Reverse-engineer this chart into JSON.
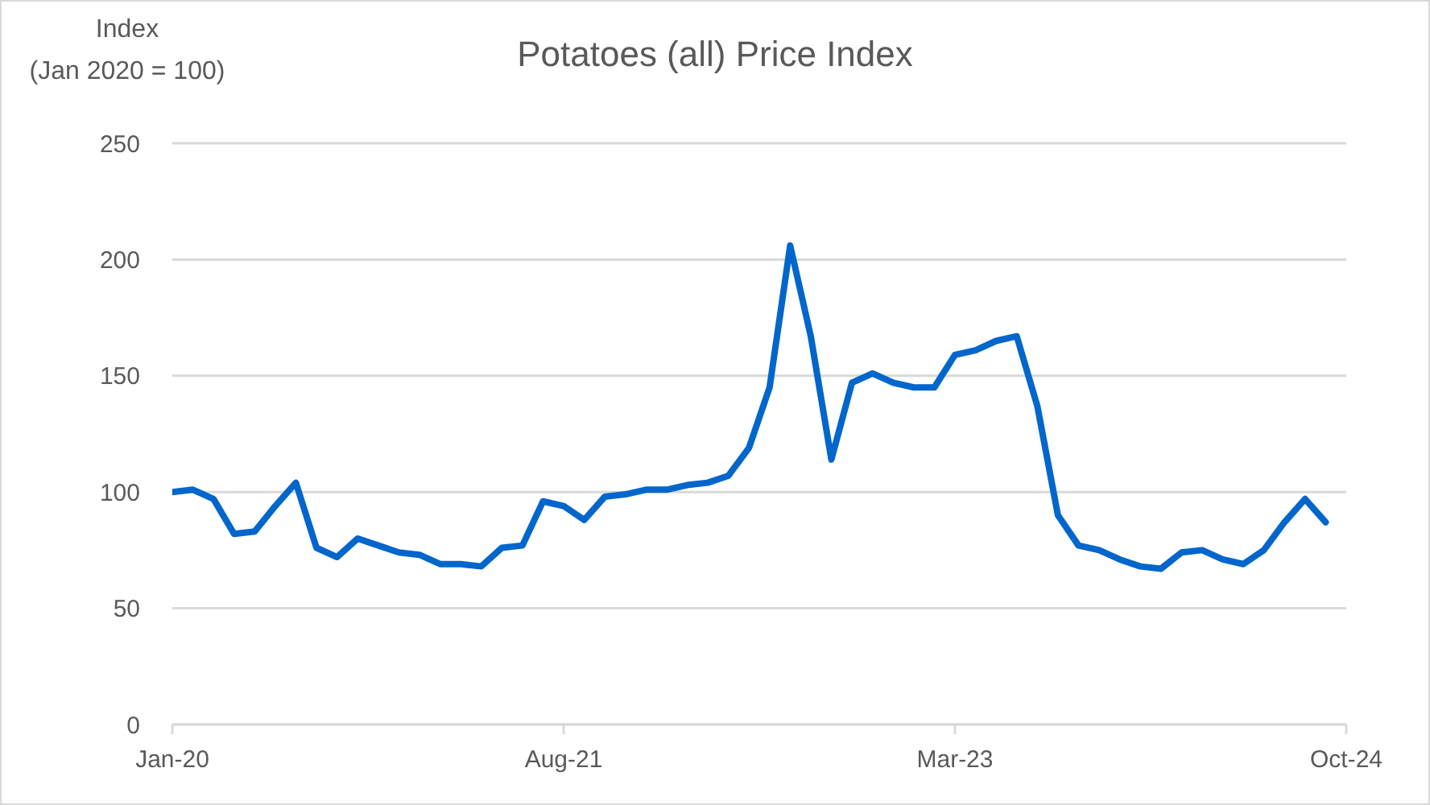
{
  "chart_data": {
    "type": "line",
    "title": "Potatoes (all) Price Index",
    "ylabel": "Index\n(Jan 2020 = 100)",
    "x": [
      "2020-01",
      "2020-02",
      "2020-03",
      "2020-04",
      "2020-05",
      "2020-06",
      "2020-07",
      "2020-08",
      "2020-09",
      "2020-10",
      "2020-11",
      "2020-12",
      "2021-01",
      "2021-02",
      "2021-03",
      "2021-04",
      "2021-05",
      "2021-06",
      "2021-07",
      "2021-08",
      "2021-09",
      "2021-10",
      "2021-11",
      "2021-12",
      "2022-01",
      "2022-02",
      "2022-03",
      "2022-04",
      "2022-05",
      "2022-06",
      "2022-07",
      "2022-08",
      "2022-09",
      "2022-10",
      "2022-11",
      "2022-12",
      "2023-01",
      "2023-02",
      "2023-03",
      "2023-04",
      "2023-05",
      "2023-06",
      "2023-07",
      "2023-08",
      "2023-09",
      "2023-10",
      "2023-11",
      "2023-12",
      "2024-01",
      "2024-02",
      "2024-03",
      "2024-04",
      "2024-05",
      "2024-06",
      "2024-07",
      "2024-08",
      "2024-09"
    ],
    "values": [
      100,
      101,
      97,
      82,
      83,
      94,
      104,
      76,
      72,
      80,
      77,
      74,
      73,
      69,
      69,
      68,
      76,
      77,
      96,
      94,
      88,
      98,
      99,
      101,
      101,
      103,
      104,
      107,
      119,
      145,
      206,
      167,
      114,
      147,
      151,
      147,
      145,
      145,
      159,
      161,
      165,
      167,
      137,
      90,
      77,
      75,
      71,
      68,
      67,
      74,
      75,
      71,
      69,
      75,
      87,
      97,
      87
    ],
    "color": "#0066cc",
    "line_style": "solid",
    "xlim": [
      "2020-01",
      "2024-10"
    ],
    "xticks": [
      {
        "value": "2020-01",
        "label": "Jan-20"
      },
      {
        "value": "2021-08",
        "label": "Aug-21"
      },
      {
        "value": "2023-03",
        "label": "Mar-23"
      },
      {
        "value": "2024-10",
        "label": "Oct-24"
      }
    ],
    "ylim": [
      0,
      250
    ],
    "yticks": [
      0,
      50,
      100,
      150,
      200,
      250
    ],
    "grid": "y"
  }
}
